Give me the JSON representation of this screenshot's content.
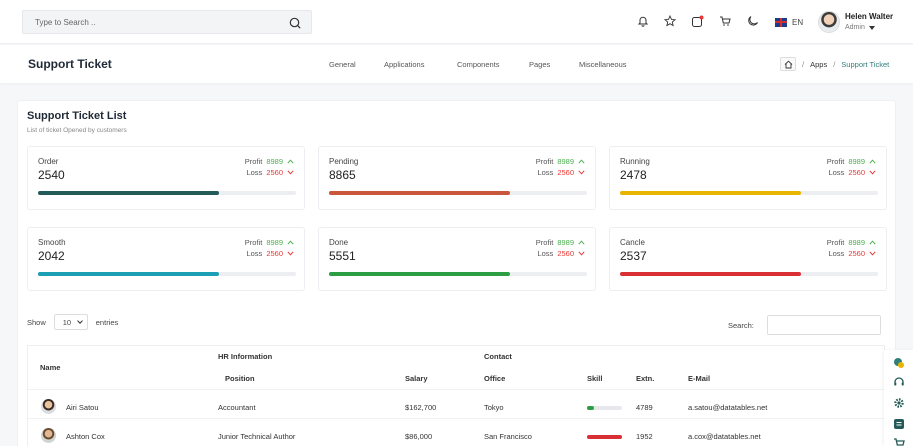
{
  "header": {
    "search_placeholder": "Type to Search ..",
    "language": "EN",
    "user_name": "Helen Walter",
    "user_role": "Admin"
  },
  "subheader": {
    "title": "Support Ticket",
    "nav": [
      "General",
      "Applications",
      "Components",
      "Pages",
      "Miscellaneous"
    ],
    "breadcrumb": {
      "sep": "/",
      "apps": "Apps",
      "current": "Support Ticket"
    }
  },
  "list": {
    "title": "Support Ticket List",
    "subtitle": "List of ticket Opened by customers"
  },
  "stats": [
    {
      "label": "Order",
      "value": "2540",
      "profit_label": "Profit",
      "profit": "8989",
      "loss_label": "Loss",
      "loss": "2560",
      "progress": 0.7,
      "color": "#235b59"
    },
    {
      "label": "Pending",
      "value": "8865",
      "profit_label": "Profit",
      "profit": "8989",
      "loss_label": "Loss",
      "loss": "2560",
      "progress": 0.7,
      "color": "#c9573c"
    },
    {
      "label": "Running",
      "value": "2478",
      "profit_label": "Profit",
      "profit": "8989",
      "loss_label": "Loss",
      "loss": "2560",
      "progress": 0.7,
      "color": "#e8b500"
    },
    {
      "label": "Smooth",
      "value": "2042",
      "profit_label": "Profit",
      "profit": "8989",
      "loss_label": "Loss",
      "loss": "2560",
      "progress": 0.7,
      "color": "#1a9fb5"
    },
    {
      "label": "Done",
      "value": "5551",
      "profit_label": "Profit",
      "profit": "8989",
      "loss_label": "Loss",
      "loss": "2560",
      "progress": 0.7,
      "color": "#2e9e44"
    },
    {
      "label": "Cancle",
      "value": "2537",
      "profit_label": "Profit",
      "profit": "8989",
      "loss_label": "Loss",
      "loss": "2560",
      "progress": 0.7,
      "color": "#d93036"
    }
  ],
  "table_controls": {
    "show_label": "Show",
    "entries_value": "10",
    "entries_label": "entries",
    "search_label": "Search:"
  },
  "table": {
    "group_hr": "HR Information",
    "group_contact": "Contact",
    "columns": {
      "name": "Name",
      "position": "Position",
      "salary": "Salary",
      "office": "Office",
      "skill": "Skill",
      "extn": "Extn.",
      "email": "E-Mail"
    },
    "rows": [
      {
        "name": "Airi Satou",
        "position": "Accountant",
        "salary": "$162,700",
        "office": "Tokyo",
        "skill": 0.2,
        "skill_color": "#2e9e44",
        "extn": "4789",
        "email": "a.satou@datatables.net"
      },
      {
        "name": "Ashton Cox",
        "position": "Junior Technical Author",
        "salary": "$86,000",
        "office": "San Francisco",
        "skill": 1.0,
        "skill_color": "#d93036",
        "extn": "1952",
        "email": "a.cox@datatables.net"
      }
    ]
  }
}
